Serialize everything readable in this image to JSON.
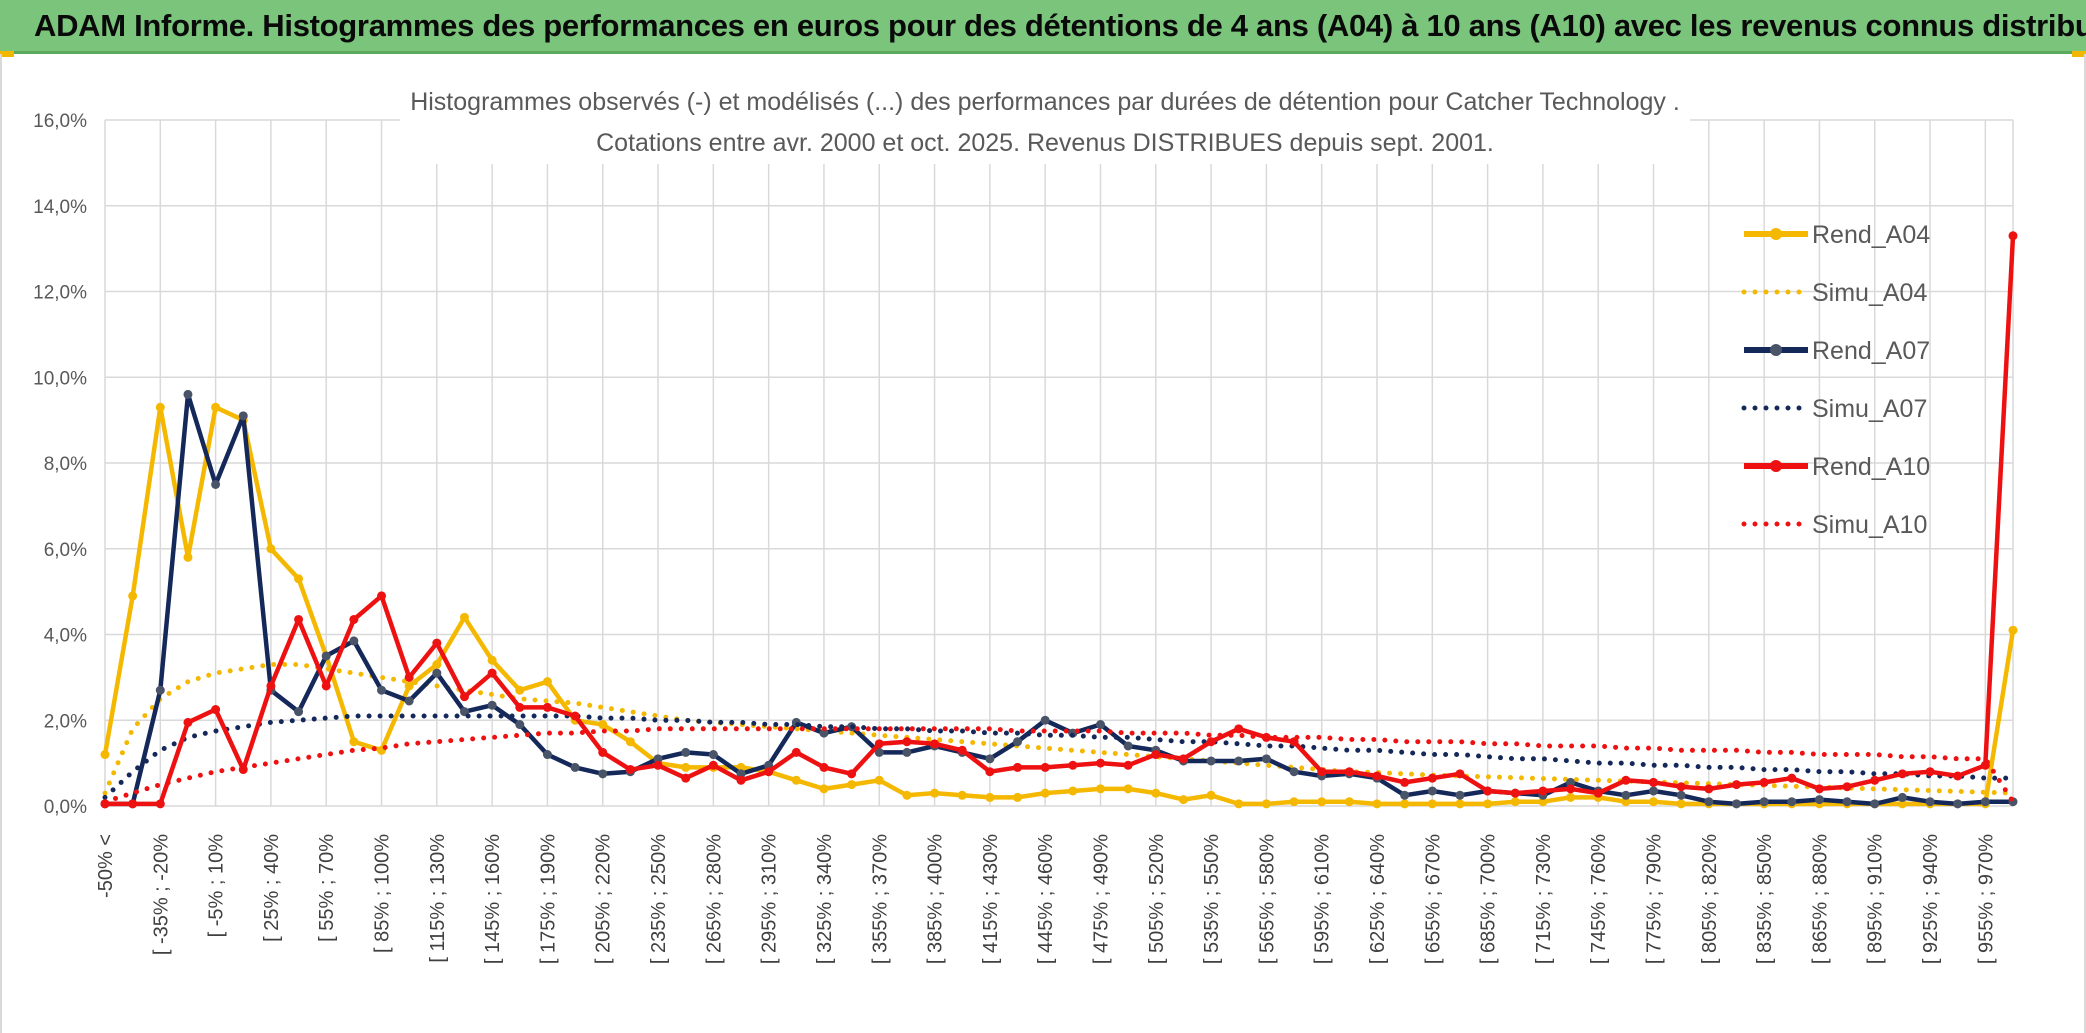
{
  "banner": {
    "title": "ADAM Informe. Histogrammes des performances en euros pour des détentions de 4 ans (A04) à 10 ans (A10) avec les revenus connus distribués",
    "background": "#7ac47c"
  },
  "chart_data": {
    "type": "line",
    "title_line1": "Histogrammes observés (-) et modélisés (...) des performances par durées de détention pour Catcher Technology .",
    "title_line2": "Cotations entre avr. 2000 et oct. 2025. Revenus DISTRIBUES depuis sept. 2001.",
    "xlabel": "",
    "ylabel": "",
    "ylim": [
      0,
      16
    ],
    "y_ticks": [
      "0,0%",
      "2,0%",
      "4,0%",
      "6,0%",
      "8,0%",
      "10,0%",
      "12,0%",
      "14,0%",
      "16,0%"
    ],
    "x_tick_labels": [
      "-50% <",
      "[ -35% ; -20%",
      "[ -5% ; 10%",
      "[ 25% ; 40%",
      "[ 55% ; 70%",
      "[ 85% ; 100%",
      "[ 115% ; 130%",
      "[ 145% ; 160%",
      "[ 175% ; 190%",
      "[ 205% ; 220%",
      "[ 235% ; 250%",
      "[ 265% ; 280%",
      "[ 295% ; 310%",
      "[ 325% ; 340%",
      "[ 355% ; 370%",
      "[ 385% ; 400%",
      "[ 415% ; 430%",
      "[ 445% ; 460%",
      "[ 475% ; 490%",
      "[ 505% ; 520%",
      "[ 535% ; 550%",
      "[ 565% ; 580%",
      "[ 595% ; 610%",
      "[ 625% ; 640%",
      "[ 655% ; 670%",
      "[ 685% ; 700%",
      "[ 715% ; 730%",
      "[ 745% ; 760%",
      "[ 775% ; 790%",
      "[ 805% ; 820%",
      "[ 835% ; 850%",
      "[ 865% ; 880%",
      "[ 895% ; 910%",
      "[ 925% ; 940%",
      "[ 955% ; 970%"
    ],
    "n_points": 70,
    "grid": true,
    "legend_position": "right",
    "series": [
      {
        "name": "Rend_A04",
        "style": "solid",
        "color": "#f5b800",
        "values": [
          1.2,
          4.9,
          9.3,
          5.8,
          9.3,
          9.0,
          6.0,
          5.3,
          3.5,
          1.5,
          1.3,
          2.8,
          3.3,
          4.4,
          3.4,
          2.7,
          2.9,
          2.0,
          1.9,
          1.5,
          1.0,
          0.9,
          0.9,
          0.9,
          0.8,
          0.6,
          0.4,
          0.5,
          0.6,
          0.25,
          0.3,
          0.25,
          0.2,
          0.2,
          0.3,
          0.35,
          0.4,
          0.4,
          0.3,
          0.15,
          0.25,
          0.05,
          0.05,
          0.1,
          0.1,
          0.1,
          0.05,
          0.05,
          0.05,
          0.05,
          0.05,
          0.1,
          0.1,
          0.2,
          0.2,
          0.1,
          0.1,
          0.05,
          0.05,
          0.05,
          0.05,
          0.05,
          0.05,
          0.05,
          0.05,
          0.05,
          0.05,
          0.05,
          0.05,
          4.1
        ]
      },
      {
        "name": "Simu_A04",
        "style": "dotted",
        "color": "#f5b800",
        "values": [
          0.3,
          1.8,
          2.5,
          2.9,
          3.1,
          3.2,
          3.3,
          3.3,
          3.2,
          3.1,
          3.0,
          2.9,
          2.8,
          2.7,
          2.6,
          2.5,
          2.45,
          2.4,
          2.3,
          2.2,
          2.1,
          2.0,
          1.95,
          1.9,
          1.85,
          1.8,
          1.75,
          1.7,
          1.65,
          1.6,
          1.55,
          1.5,
          1.45,
          1.4,
          1.35,
          1.3,
          1.25,
          1.2,
          1.15,
          1.1,
          1.05,
          1.0,
          0.95,
          0.9,
          0.85,
          0.8,
          0.78,
          0.75,
          0.72,
          0.7,
          0.68,
          0.66,
          0.64,
          0.62,
          0.6,
          0.58,
          0.56,
          0.54,
          0.52,
          0.5,
          0.48,
          0.46,
          0.44,
          0.42,
          0.4,
          0.38,
          0.36,
          0.34,
          0.32,
          0.3
        ]
      },
      {
        "name": "Rend_A07",
        "style": "solid",
        "color": "#14285a",
        "values": [
          0.05,
          0.05,
          2.7,
          9.6,
          7.5,
          9.1,
          2.7,
          2.2,
          3.5,
          3.85,
          2.7,
          2.45,
          3.1,
          2.2,
          2.35,
          1.9,
          1.2,
          0.9,
          0.75,
          0.8,
          1.1,
          1.25,
          1.2,
          0.75,
          0.95,
          1.95,
          1.7,
          1.85,
          1.25,
          1.25,
          1.4,
          1.25,
          1.1,
          1.5,
          2.0,
          1.7,
          1.9,
          1.4,
          1.3,
          1.05,
          1.05,
          1.05,
          1.1,
          0.8,
          0.7,
          0.75,
          0.65,
          0.25,
          0.35,
          0.25,
          0.35,
          0.3,
          0.25,
          0.55,
          0.35,
          0.25,
          0.35,
          0.25,
          0.1,
          0.05,
          0.1,
          0.1,
          0.15,
          0.1,
          0.05,
          0.2,
          0.1,
          0.05,
          0.1,
          0.1
        ]
      },
      {
        "name": "Simu_A07",
        "style": "dotted",
        "color": "#14285a",
        "values": [
          0.2,
          0.8,
          1.3,
          1.6,
          1.75,
          1.85,
          1.95,
          2.0,
          2.05,
          2.1,
          2.1,
          2.1,
          2.1,
          2.1,
          2.1,
          2.1,
          2.1,
          2.1,
          2.05,
          2.05,
          2.0,
          2.0,
          1.95,
          1.95,
          1.9,
          1.9,
          1.85,
          1.85,
          1.8,
          1.8,
          1.75,
          1.75,
          1.7,
          1.7,
          1.65,
          1.65,
          1.6,
          1.6,
          1.55,
          1.5,
          1.5,
          1.45,
          1.4,
          1.4,
          1.35,
          1.3,
          1.3,
          1.25,
          1.2,
          1.2,
          1.15,
          1.1,
          1.1,
          1.05,
          1.0,
          1.0,
          0.95,
          0.95,
          0.9,
          0.9,
          0.85,
          0.85,
          0.8,
          0.8,
          0.75,
          0.75,
          0.7,
          0.7,
          0.65,
          0.65
        ]
      },
      {
        "name": "Rend_A10",
        "style": "solid",
        "color": "#ee1111",
        "values": [
          0.05,
          0.05,
          0.05,
          1.95,
          2.25,
          0.85,
          2.8,
          4.35,
          2.8,
          4.35,
          4.9,
          3.0,
          3.8,
          2.55,
          3.1,
          2.3,
          2.3,
          2.1,
          1.25,
          0.85,
          0.95,
          0.65,
          0.95,
          0.6,
          0.8,
          1.25,
          0.9,
          0.75,
          1.45,
          1.5,
          1.45,
          1.3,
          0.8,
          0.9,
          0.9,
          0.95,
          1.0,
          0.95,
          1.2,
          1.1,
          1.5,
          1.8,
          1.6,
          1.5,
          0.8,
          0.8,
          0.7,
          0.55,
          0.65,
          0.75,
          0.35,
          0.3,
          0.35,
          0.4,
          0.3,
          0.6,
          0.55,
          0.45,
          0.4,
          0.5,
          0.55,
          0.65,
          0.4,
          0.45,
          0.6,
          0.75,
          0.8,
          0.7,
          0.95,
          13.3
        ]
      },
      {
        "name": "Simu_A10",
        "style": "dotted",
        "color": "#ee1111",
        "values": [
          0.1,
          0.3,
          0.5,
          0.65,
          0.8,
          0.9,
          1.0,
          1.1,
          1.2,
          1.3,
          1.35,
          1.45,
          1.5,
          1.55,
          1.6,
          1.65,
          1.7,
          1.7,
          1.75,
          1.75,
          1.8,
          1.8,
          1.8,
          1.8,
          1.8,
          1.8,
          1.8,
          1.8,
          1.8,
          1.8,
          1.8,
          1.8,
          1.8,
          1.75,
          1.75,
          1.75,
          1.75,
          1.7,
          1.7,
          1.7,
          1.65,
          1.65,
          1.6,
          1.6,
          1.6,
          1.55,
          1.55,
          1.5,
          1.5,
          1.5,
          1.45,
          1.45,
          1.4,
          1.4,
          1.4,
          1.35,
          1.35,
          1.3,
          1.3,
          1.3,
          1.25,
          1.25,
          1.2,
          1.2,
          1.2,
          1.15,
          1.15,
          1.1,
          1.1,
          0.1
        ]
      }
    ]
  }
}
